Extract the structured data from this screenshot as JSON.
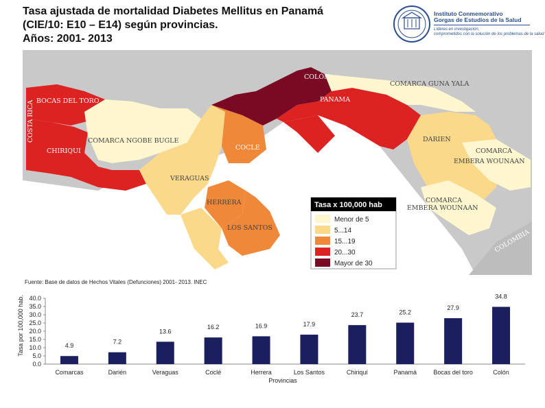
{
  "title": {
    "line1": "Tasa ajustada de mortalidad Diabetes Mellitus en Panamá",
    "line2": "(CIE/10: E10 – E14) según provincias.",
    "line3": "Años: 2001- 2013"
  },
  "logo": {
    "line1": "Instituto Conmemorativo",
    "line2": "Gorgas de Estudios de la Salud",
    "line3": "Líderes en investigación,",
    "line4": "comprometidos con la solución de los problemas de la salud"
  },
  "map": {
    "labels": {
      "costa_rica": "COSTA RICA",
      "colombia": "COLOMBIA",
      "bocas": "BOCAS DEL TORO",
      "chiriqui": "CHIRIQUI",
      "ngobe": "COMARCA NGOBE BUGLE",
      "veraguas": "VERAGUAS",
      "cocle": "COCLE",
      "herrera": "HERRERA",
      "los_santos": "LOS SANTOS",
      "colon": "COLÓN",
      "panama": "PANAMA",
      "guna": "COMARCA GUNA YALA",
      "darien": "DARIEN",
      "embera1_a": "COMARCA",
      "embera1_b": "EMBERA WOUNAAN",
      "embera2_a": "COMARCA",
      "embera2_b": "EMBERA WOUNAAN"
    },
    "legend": {
      "title": "Tasa x 100,000 hab",
      "items": [
        {
          "label": "Menor de 5",
          "color": "#fdf6cf"
        },
        {
          "label": "5...14",
          "color": "#fbd98a"
        },
        {
          "label": "15...19",
          "color": "#f0883a"
        },
        {
          "label": "20...30",
          "color": "#dd2222"
        },
        {
          "label": "Mayor de 30",
          "color": "#7a0a24"
        }
      ]
    }
  },
  "source": "Fuente: Base de datos de Hechos Vitales (Defunciones) 2001- 2013. INEC",
  "chart_data": {
    "type": "bar",
    "categories": [
      "Comarcas",
      "Darién",
      "Veraguas",
      "Coclé",
      "Herrera",
      "Los Santos",
      "Chiriquí",
      "Panamá",
      "Bocas del toro",
      "Colón"
    ],
    "values": [
      4.9,
      7.2,
      13.6,
      16.2,
      16.9,
      17.9,
      23.7,
      25.2,
      27.9,
      34.8
    ],
    "labels": [
      "4.9",
      "7.2",
      "13.6",
      "16.2",
      "16.9",
      "17.9",
      "23.7",
      "25.2",
      "27.9",
      "34.8"
    ],
    "yticks": [
      "0.0",
      "5.0",
      "10.0",
      "15.0",
      "20.0",
      "25.0",
      "30.0",
      "35.0",
      "40.0"
    ],
    "ylim": [
      0,
      40
    ],
    "xlabel": "Provincias",
    "ylabel": "Tasa por 100,000 hab.",
    "bar_color": "#1b1f5e"
  }
}
